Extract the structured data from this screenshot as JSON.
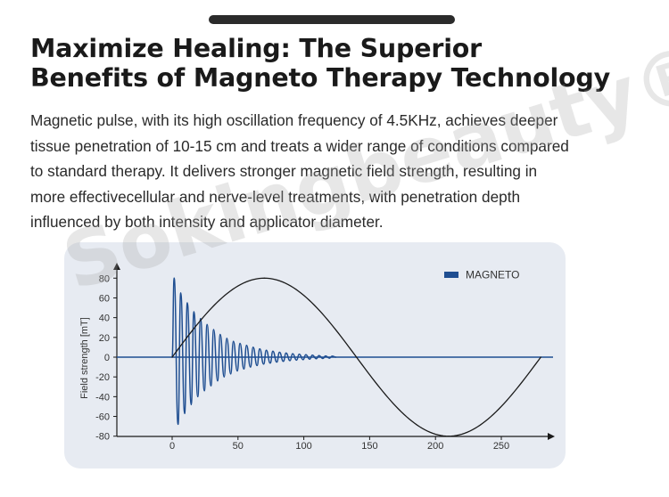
{
  "title": {
    "line1": "Maximize Healing: The Superior",
    "line2": "Benefits of Magneto Therapy Technology"
  },
  "description": {
    "lines": [
      "Magnetic pulse, with its high oscillation frequency of 4.5KHz, achieves deeper",
      "tissue penetration of 10-15 cm and treats a wider range of conditions compared",
      "to standard  therapy. It delivers stronger magnetic field strength, resulting in",
      "more effectivecellular and nerve-level treatments, with penetration depth",
      "influenced by both intensity and applicator diameter."
    ]
  },
  "watermark": "Sokingbeauty®",
  "colors": {
    "accent": "#1f4e91",
    "curve": "#1a1a1a",
    "panel": "#e7ebf2"
  },
  "chart_data": {
    "type": "line",
    "ylabel": "Field strength [mT]",
    "xlabel": "",
    "xlim": [
      -40,
      290
    ],
    "ylim": [
      -80,
      80
    ],
    "x_ticks": [
      0,
      50,
      100,
      150,
      200,
      250
    ],
    "y_ticks": [
      80,
      60,
      40,
      20,
      0,
      -20,
      -40,
      -60,
      -80
    ],
    "legend": {
      "position": "top-right",
      "entries": [
        "MAGNETO"
      ]
    },
    "series": [
      {
        "name": "MAGNETO",
        "description": "damped oscillation",
        "x": [
          1.5,
          4.5,
          6.5,
          9.5,
          11.5,
          14.5,
          16.5,
          19.5,
          21.5,
          24.5,
          26.5,
          29.5,
          31.5,
          34.5,
          36.5,
          39.5,
          41.5,
          44.5,
          46.5,
          49.5,
          51.5,
          54.5,
          56.5,
          59.5,
          61.5,
          64.5,
          66.5,
          69.5,
          71.5,
          74.5,
          76.5,
          79.5,
          81.5,
          84.5,
          86.5,
          89.5,
          91.5,
          94.5,
          96.5,
          99.5,
          101.5,
          104.5,
          106.5,
          109.5,
          111.5,
          114.5,
          116.5,
          119.5,
          121.5,
          124.5
        ],
        "y": [
          80,
          -68,
          65,
          -57,
          55,
          -48,
          46,
          -40,
          39,
          -34,
          33,
          -29,
          28,
          -24,
          23,
          -20,
          19,
          -17,
          16,
          -14,
          14,
          -12,
          12,
          -10,
          10,
          -8.5,
          8.5,
          -7,
          7,
          -6,
          6,
          -5,
          5,
          -4.2,
          4.2,
          -3.5,
          3.5,
          -3,
          3,
          -2.5,
          2.5,
          -2,
          2,
          -1.6,
          1.6,
          -1.3,
          1.2,
          -1,
          1,
          0
        ]
      },
      {
        "name": "",
        "description": "standard sine wave",
        "x": [
          0,
          70,
          140,
          210,
          280
        ],
        "y": [
          0,
          80,
          0,
          -80,
          0
        ]
      }
    ]
  }
}
